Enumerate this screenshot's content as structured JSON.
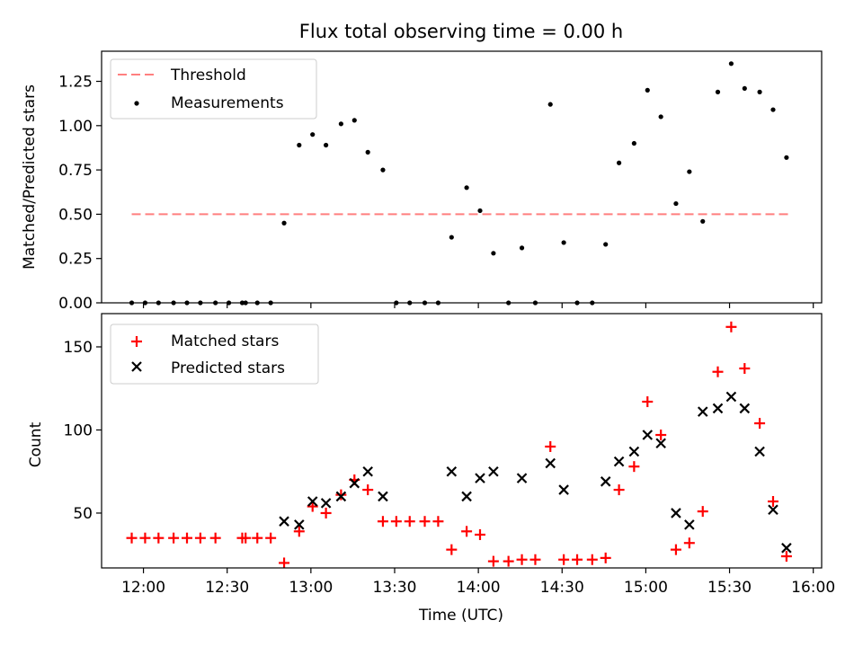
{
  "chart_data": [
    {
      "type": "scatter",
      "title": "Flux total observing time = 0.00 h",
      "xlabel": "",
      "ylabel": "Matched/Predicted stars",
      "xlim": [
        11.75,
        16.05
      ],
      "ylim": [
        0,
        1.42
      ],
      "yticks": [
        0,
        0.25,
        0.5,
        0.75,
        1.0,
        1.25
      ],
      "ytick_labels": [
        "0.00",
        "0.25",
        "0.50",
        "0.75",
        "1.00",
        "1.25"
      ],
      "legend": {
        "position": "top-left",
        "entries": [
          "Threshold",
          "Measurements"
        ]
      },
      "threshold": {
        "name": "Threshold",
        "value": 0.5,
        "x_range": [
          11.93,
          15.85
        ],
        "color": "#ff7f7f"
      },
      "series": [
        {
          "name": "Measurements",
          "color": "#000000",
          "points": [
            [
              11.93,
              0
            ],
            [
              12.01,
              0
            ],
            [
              12.09,
              0
            ],
            [
              12.18,
              0
            ],
            [
              12.26,
              0
            ],
            [
              12.34,
              0
            ],
            [
              12.43,
              0
            ],
            [
              12.51,
              0
            ],
            [
              12.59,
              0
            ],
            [
              12.61,
              0
            ],
            [
              12.68,
              0
            ],
            [
              12.76,
              0
            ],
            [
              12.84,
              0.45
            ],
            [
              12.93,
              0.89
            ],
            [
              13.01,
              0.95
            ],
            [
              13.09,
              0.89
            ],
            [
              13.18,
              1.01
            ],
            [
              13.26,
              1.03
            ],
            [
              13.34,
              0.85
            ],
            [
              13.43,
              0.75
            ],
            [
              13.51,
              0
            ],
            [
              13.59,
              0
            ],
            [
              13.68,
              0
            ],
            [
              13.76,
              0
            ],
            [
              13.84,
              0.37
            ],
            [
              13.93,
              0.65
            ],
            [
              14.01,
              0.52
            ],
            [
              14.09,
              0.28
            ],
            [
              14.18,
              0
            ],
            [
              14.26,
              0.31
            ],
            [
              14.34,
              0
            ],
            [
              14.43,
              1.12
            ],
            [
              14.51,
              0.34
            ],
            [
              14.59,
              0
            ],
            [
              14.68,
              0
            ],
            [
              14.76,
              0.33
            ],
            [
              14.84,
              0.79
            ],
            [
              14.93,
              0.9
            ],
            [
              15.01,
              1.2
            ],
            [
              15.09,
              1.05
            ],
            [
              15.18,
              0.56
            ],
            [
              15.26,
              0.74
            ],
            [
              15.34,
              0.46
            ],
            [
              15.43,
              1.19
            ],
            [
              15.51,
              1.35
            ],
            [
              15.59,
              1.21
            ],
            [
              15.68,
              1.19
            ],
            [
              15.76,
              1.09
            ],
            [
              15.84,
              0.82
            ]
          ]
        }
      ]
    },
    {
      "type": "scatter",
      "title": "",
      "xlabel": "Time (UTC)",
      "ylabel": "Count",
      "xlim": [
        11.75,
        16.05
      ],
      "ylim": [
        17,
        170
      ],
      "yticks": [
        50,
        100,
        150
      ],
      "ytick_labels": [
        "50",
        "100",
        "150"
      ],
      "xticks": [
        12.0,
        12.5,
        13.0,
        13.5,
        14.0,
        14.5,
        15.0,
        15.5,
        16.0
      ],
      "xtick_labels": [
        "12:00",
        "12:30",
        "13:00",
        "13:30",
        "14:00",
        "14:30",
        "15:00",
        "15:30",
        "16:00"
      ],
      "legend": {
        "position": "top-left",
        "entries": [
          "Matched stars",
          "Predicted stars"
        ]
      },
      "series": [
        {
          "name": "Matched stars",
          "marker": "plus",
          "color": "#ff0000",
          "points": [
            [
              11.93,
              35
            ],
            [
              12.01,
              35
            ],
            [
              12.09,
              35
            ],
            [
              12.18,
              35
            ],
            [
              12.26,
              35
            ],
            [
              12.34,
              35
            ],
            [
              12.43,
              35
            ],
            [
              12.59,
              35
            ],
            [
              12.61,
              35
            ],
            [
              12.68,
              35
            ],
            [
              12.76,
              35
            ],
            [
              12.84,
              20
            ],
            [
              12.93,
              39
            ],
            [
              13.01,
              54
            ],
            [
              13.09,
              50
            ],
            [
              13.18,
              61
            ],
            [
              13.26,
              70
            ],
            [
              13.34,
              64
            ],
            [
              13.43,
              45
            ],
            [
              13.51,
              45
            ],
            [
              13.59,
              45
            ],
            [
              13.68,
              45
            ],
            [
              13.76,
              45
            ],
            [
              13.84,
              28
            ],
            [
              13.93,
              39
            ],
            [
              14.01,
              37
            ],
            [
              14.09,
              21
            ],
            [
              14.18,
              21
            ],
            [
              14.26,
              22
            ],
            [
              14.34,
              22
            ],
            [
              14.43,
              90
            ],
            [
              14.51,
              22
            ],
            [
              14.59,
              22
            ],
            [
              14.68,
              22
            ],
            [
              14.76,
              23
            ],
            [
              14.84,
              64
            ],
            [
              14.93,
              78
            ],
            [
              15.01,
              117
            ],
            [
              15.09,
              97
            ],
            [
              15.18,
              28
            ],
            [
              15.26,
              32
            ],
            [
              15.34,
              51
            ],
            [
              15.43,
              135
            ],
            [
              15.51,
              162
            ],
            [
              15.59,
              137
            ],
            [
              15.68,
              104
            ],
            [
              15.76,
              57
            ],
            [
              15.84,
              24
            ]
          ]
        },
        {
          "name": "Predicted stars",
          "marker": "x",
          "color": "#000000",
          "points": [
            [
              12.84,
              45
            ],
            [
              12.93,
              43
            ],
            [
              13.01,
              57
            ],
            [
              13.09,
              56
            ],
            [
              13.18,
              60
            ],
            [
              13.26,
              68
            ],
            [
              13.34,
              75
            ],
            [
              13.43,
              60
            ],
            [
              13.84,
              75
            ],
            [
              13.93,
              60
            ],
            [
              14.01,
              71
            ],
            [
              14.09,
              75
            ],
            [
              14.26,
              71
            ],
            [
              14.43,
              80
            ],
            [
              14.51,
              64
            ],
            [
              14.76,
              69
            ],
            [
              14.84,
              81
            ],
            [
              14.93,
              87
            ],
            [
              15.01,
              97
            ],
            [
              15.09,
              92
            ],
            [
              15.18,
              50
            ],
            [
              15.26,
              43
            ],
            [
              15.34,
              111
            ],
            [
              15.43,
              113
            ],
            [
              15.51,
              120
            ],
            [
              15.59,
              113
            ],
            [
              15.68,
              87
            ],
            [
              15.76,
              52
            ],
            [
              15.84,
              29
            ]
          ]
        }
      ]
    }
  ]
}
